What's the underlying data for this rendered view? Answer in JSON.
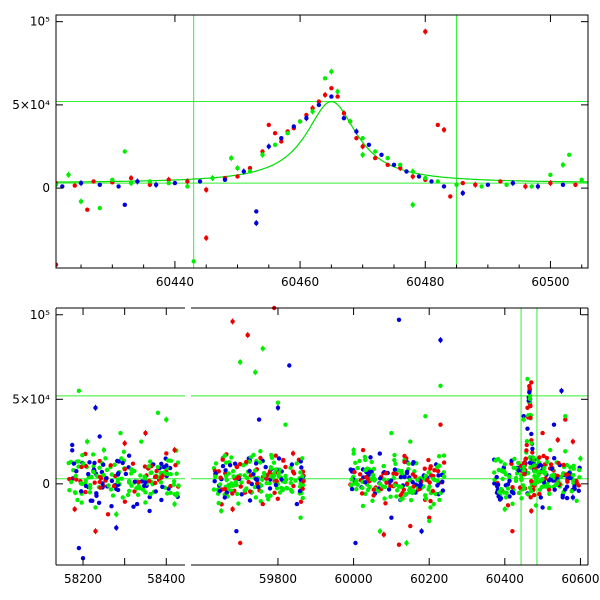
{
  "chart_data": [
    {
      "type": "scatter",
      "title": "",
      "xlabel": "",
      "ylabel": "",
      "xlim": [
        60421,
        60506
      ],
      "ylim": [
        -48000,
        104000
      ],
      "xticks": [
        60440,
        60460,
        60480,
        60500
      ],
      "yticks": [
        {
          "value": 0,
          "label": "0"
        },
        {
          "value": 50000,
          "label": "5×10⁴"
        },
        {
          "value": 100000,
          "label": "10⁵"
        }
      ],
      "reference_lines": {
        "vertical": [
          60443,
          60485
        ],
        "horizontal": [
          3000,
          52000
        ]
      },
      "model_curve": {
        "color": "#00dd00",
        "peak_x": 60465,
        "peak_y": 52000,
        "baseline": 3000,
        "width_days": 5
      },
      "series_colors": {
        "red": "#ee0000",
        "blue": "#0000dd",
        "green": "#00ee00"
      },
      "series": [
        {
          "color": "red",
          "points": [
            [
              60421,
              3000
            ],
            [
              60424,
              1500
            ],
            [
              60427,
              4000
            ],
            [
              60430,
              3500
            ],
            [
              60433,
              6000
            ],
            [
              60436,
              2000
            ],
            [
              60439,
              5000
            ],
            [
              60442,
              4000
            ],
            [
              60445,
              -1000
            ],
            [
              60448,
              6000
            ],
            [
              60450,
              7000
            ],
            [
              60452,
              12000
            ],
            [
              60454,
              22000
            ],
            [
              60455,
              38000
            ],
            [
              60456,
              33000
            ],
            [
              60457,
              28000
            ],
            [
              60458,
              34000
            ],
            [
              60459,
              36000
            ],
            [
              60460,
              40000
            ],
            [
              60461,
              44000
            ],
            [
              60462,
              48000
            ],
            [
              60463,
              52000
            ],
            [
              60464,
              56000
            ],
            [
              60465,
              60000
            ],
            [
              60466,
              55000
            ],
            [
              60467,
              45000
            ],
            [
              60468,
              40000
            ],
            [
              60469,
              30000
            ],
            [
              60470,
              25000
            ],
            [
              60472,
              18000
            ],
            [
              60474,
              14000
            ],
            [
              60476,
              12000
            ],
            [
              60478,
              7000
            ],
            [
              60480,
              5000
            ],
            [
              60482,
              38000
            ],
            [
              60483,
              35000
            ],
            [
              60484,
              -5000
            ],
            [
              60486,
              3000
            ],
            [
              60488,
              2000
            ],
            [
              60492,
              4000
            ],
            [
              60496,
              1000
            ],
            [
              60500,
              3000
            ],
            [
              60504,
              2000
            ],
            [
              60426,
              -13000
            ],
            [
              60480,
              94000
            ],
            [
              60445,
              -30000
            ],
            [
              60421,
              -46000
            ]
          ]
        },
        {
          "color": "blue",
          "points": [
            [
              60422,
              1000
            ],
            [
              60425,
              3000
            ],
            [
              60428,
              2000
            ],
            [
              60431,
              1000
            ],
            [
              60434,
              4000
            ],
            [
              60437,
              2000
            ],
            [
              60440,
              3000
            ],
            [
              60444,
              4000
            ],
            [
              60448,
              5000
            ],
            [
              60451,
              10000
            ],
            [
              60453,
              -14000
            ],
            [
              60453,
              -21000
            ],
            [
              60455,
              25000
            ],
            [
              60457,
              30000
            ],
            [
              60459,
              37000
            ],
            [
              60461,
              42000
            ],
            [
              60463,
              50000
            ],
            [
              60465,
              55000
            ],
            [
              60467,
              42000
            ],
            [
              60469,
              34000
            ],
            [
              60471,
              26000
            ],
            [
              60473,
              20000
            ],
            [
              60475,
              14000
            ],
            [
              60477,
              10000
            ],
            [
              60479,
              7000
            ],
            [
              60481,
              4000
            ],
            [
              60483,
              1000
            ],
            [
              60486,
              -3000
            ],
            [
              60490,
              2000
            ],
            [
              60494,
              3000
            ],
            [
              60498,
              1000
            ],
            [
              60502,
              2000
            ],
            [
              60432,
              -10000
            ]
          ]
        },
        {
          "color": "green",
          "points": [
            [
              60421,
              2000
            ],
            [
              60423,
              8000
            ],
            [
              60425,
              -8000
            ],
            [
              60428,
              -12000
            ],
            [
              60430,
              5000
            ],
            [
              60433,
              3000
            ],
            [
              60436,
              4000
            ],
            [
              60439,
              3000
            ],
            [
              60442,
              1000
            ],
            [
              60446,
              6000
            ],
            [
              60449,
              18000
            ],
            [
              60450,
              12000
            ],
            [
              60452,
              10000
            ],
            [
              60454,
              20000
            ],
            [
              60456,
              26000
            ],
            [
              60458,
              33000
            ],
            [
              60460,
              40000
            ],
            [
              60462,
              46000
            ],
            [
              60464,
              66000
            ],
            [
              60465,
              70000
            ],
            [
              60466,
              58000
            ],
            [
              60468,
              40000
            ],
            [
              60470,
              30000
            ],
            [
              60472,
              22000
            ],
            [
              60474,
              18000
            ],
            [
              60476,
              14000
            ],
            [
              60478,
              10000
            ],
            [
              60480,
              6000
            ],
            [
              60482,
              4000
            ],
            [
              60485,
              2000
            ],
            [
              60489,
              1000
            ],
            [
              60493,
              2000
            ],
            [
              60497,
              1000
            ],
            [
              60500,
              8000
            ],
            [
              60502,
              14000
            ],
            [
              60503,
              20000
            ],
            [
              60505,
              5000
            ],
            [
              60432,
              22000
            ],
            [
              60443,
              -44000
            ],
            [
              60478,
              -10000
            ],
            [
              60470,
              20000
            ]
          ]
        }
      ]
    },
    {
      "type": "scatter",
      "title": "",
      "xlabel": "",
      "ylabel": "",
      "broken_axis": true,
      "segments": [
        {
          "xlim": [
            58135,
            58445
          ],
          "xticks": [
            58200,
            58300,
            58400
          ],
          "tick_labels": [
            "58200",
            "58400"
          ]
        },
        {
          "xlim": [
            59570,
            60620
          ],
          "xticks": [
            59800,
            60000,
            60200,
            60400,
            60600
          ],
          "tick_labels": [
            "59800",
            "60000",
            "60200",
            "60400",
            "60600"
          ]
        }
      ],
      "ylim": [
        -48000,
        104000
      ],
      "yticks": [
        {
          "value": 0,
          "label": "0"
        },
        {
          "value": 50000,
          "label": "5×10⁴"
        },
        {
          "value": 100000,
          "label": "10⁵"
        }
      ],
      "reference_lines": {
        "vertical": [
          60443,
          60485
        ],
        "horizontal": [
          3000,
          52000
        ]
      },
      "seasons": [
        {
          "segment": 0,
          "x_from": 58165,
          "x_to": 58430
        },
        {
          "segment": 1,
          "x_from": 59630,
          "x_to": 59870
        },
        {
          "segment": 1,
          "x_from": 59990,
          "x_to": 60240
        },
        {
          "segment": 1,
          "x_from": 60370,
          "x_to": 60600
        }
      ],
      "series_colors": {
        "red": "#ee0000",
        "blue": "#0000dd",
        "green": "#00ee00"
      },
      "series": [
        {
          "color": "red",
          "points": [
            [
              58180,
              -15000
            ],
            [
              58230,
              -28000
            ],
            [
              58260,
              -18000
            ],
            [
              58300,
              24000
            ],
            [
              58350,
              30000
            ],
            [
              58400,
              18000
            ],
            [
              59680,
              96000
            ],
            [
              59720,
              88000
            ],
            [
              59790,
              104000
            ],
            [
              59680,
              -15000
            ],
            [
              59700,
              -35000
            ],
            [
              59760,
              -12000
            ],
            [
              59840,
              18000
            ],
            [
              60080,
              -30000
            ],
            [
              60120,
              -36000
            ],
            [
              60150,
              -25000
            ],
            [
              60200,
              -20000
            ],
            [
              60230,
              35000
            ],
            [
              60460,
              45000
            ],
            [
              60470,
              60000
            ],
            [
              60500,
              30000
            ],
            [
              60540,
              26000
            ],
            [
              60560,
              38000
            ],
            [
              60580,
              25000
            ],
            [
              60420,
              -28000
            ],
            [
              60470,
              -16000
            ],
            [
              58420,
              20000
            ]
          ]
        },
        {
          "color": "blue",
          "points": [
            [
              58190,
              -38000
            ],
            [
              58200,
              -44000
            ],
            [
              58230,
              45000
            ],
            [
              58240,
              28000
            ],
            [
              58280,
              -26000
            ],
            [
              58330,
              -12000
            ],
            [
              59750,
              38000
            ],
            [
              59800,
              45000
            ],
            [
              59830,
              70000
            ],
            [
              59850,
              -12000
            ],
            [
              59690,
              -28000
            ],
            [
              60120,
              97000
            ],
            [
              60230,
              85000
            ],
            [
              60100,
              -20000
            ],
            [
              60180,
              -28000
            ],
            [
              60450,
              40000
            ],
            [
              60500,
              -14000
            ],
            [
              60530,
              35000
            ],
            [
              60550,
              55000
            ],
            [
              60580,
              -8000
            ],
            [
              58360,
              -16000
            ],
            [
              60005,
              -35000
            ]
          ]
        },
        {
          "color": "green",
          "points": [
            [
              58190,
              55000
            ],
            [
              58210,
              25000
            ],
            [
              58250,
              20000
            ],
            [
              58290,
              30000
            ],
            [
              58340,
              25000
            ],
            [
              58380,
              42000
            ],
            [
              58400,
              38000
            ],
            [
              58230,
              -14000
            ],
            [
              58280,
              -18000
            ],
            [
              58420,
              -12000
            ],
            [
              59650,
              -16000
            ],
            [
              59700,
              72000
            ],
            [
              59740,
              66000
            ],
            [
              59760,
              80000
            ],
            [
              59800,
              48000
            ],
            [
              59820,
              35000
            ],
            [
              59860,
              -20000
            ],
            [
              60000,
              20000
            ],
            [
              60050,
              -10000
            ],
            [
              60100,
              30000
            ],
            [
              60150,
              25000
            ],
            [
              60190,
              40000
            ],
            [
              60230,
              58000
            ],
            [
              60070,
              -28000
            ],
            [
              60140,
              -35000
            ],
            [
              60200,
              -22000
            ],
            [
              60460,
              62000
            ],
            [
              60450,
              38000
            ],
            [
              60520,
              20000
            ],
            [
              60560,
              40000
            ],
            [
              60590,
              -10000
            ],
            [
              60400,
              -15000
            ],
            [
              60600,
              15000
            ]
          ]
        }
      ]
    }
  ]
}
